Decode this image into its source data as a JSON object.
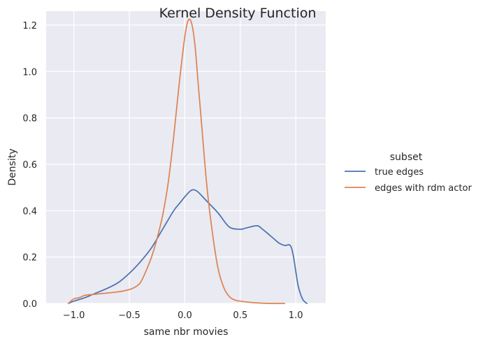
{
  "chart_data": {
    "type": "line",
    "title": "Kernel Density Function",
    "xlabel": "same nbr movies",
    "ylabel": "Density",
    "xlim": [
      -1.25,
      1.27
    ],
    "ylim": [
      0,
      1.26
    ],
    "grid": true,
    "x_ticks": [
      -1.0,
      -0.5,
      0.0,
      0.5,
      1.0
    ],
    "x_tick_labels": [
      "−1.0",
      "−0.5",
      "0.0",
      "0.5",
      "1.0"
    ],
    "y_ticks": [
      0.0,
      0.2,
      0.4,
      0.6,
      0.8,
      1.0,
      1.2
    ],
    "y_tick_labels": [
      "0.0",
      "0.2",
      "0.4",
      "0.6",
      "0.8",
      "1.0",
      "1.2"
    ],
    "legend": {
      "title": "subset",
      "position": "right"
    },
    "series": [
      {
        "name": "true edges",
        "color": "#4c72b0",
        "x": [
          -1.05,
          -1.0,
          -0.9,
          -0.8,
          -0.7,
          -0.6,
          -0.5,
          -0.4,
          -0.3,
          -0.2,
          -0.1,
          -0.05,
          0.0,
          0.05,
          0.08,
          0.12,
          0.2,
          0.3,
          0.4,
          0.5,
          0.55,
          0.65,
          0.7,
          0.8,
          0.85,
          0.9,
          0.95,
          0.98,
          1.02,
          1.06,
          1.1
        ],
        "y": [
          0.0,
          0.01,
          0.025,
          0.045,
          0.065,
          0.09,
          0.13,
          0.18,
          0.24,
          0.32,
          0.4,
          0.43,
          0.46,
          0.485,
          0.49,
          0.48,
          0.44,
          0.39,
          0.33,
          0.32,
          0.325,
          0.335,
          0.32,
          0.28,
          0.26,
          0.25,
          0.25,
          0.2,
          0.08,
          0.02,
          0.0
        ]
      },
      {
        "name": "edges with rdm actor",
        "color": "#dd8452",
        "x": [
          -1.05,
          -1.0,
          -0.95,
          -0.9,
          -0.8,
          -0.7,
          -0.6,
          -0.5,
          -0.45,
          -0.4,
          -0.35,
          -0.3,
          -0.25,
          -0.2,
          -0.15,
          -0.1,
          -0.05,
          0.0,
          0.03,
          0.06,
          0.09,
          0.12,
          0.15,
          0.2,
          0.25,
          0.3,
          0.35,
          0.4,
          0.45,
          0.5,
          0.6,
          0.7,
          0.8,
          0.9
        ],
        "y": [
          0.0,
          0.02,
          0.025,
          0.035,
          0.04,
          0.045,
          0.05,
          0.06,
          0.07,
          0.09,
          0.14,
          0.2,
          0.28,
          0.38,
          0.52,
          0.72,
          0.95,
          1.15,
          1.22,
          1.21,
          1.12,
          0.95,
          0.78,
          0.5,
          0.3,
          0.15,
          0.07,
          0.03,
          0.015,
          0.01,
          0.004,
          0.001,
          0.0,
          0.0
        ]
      }
    ]
  }
}
